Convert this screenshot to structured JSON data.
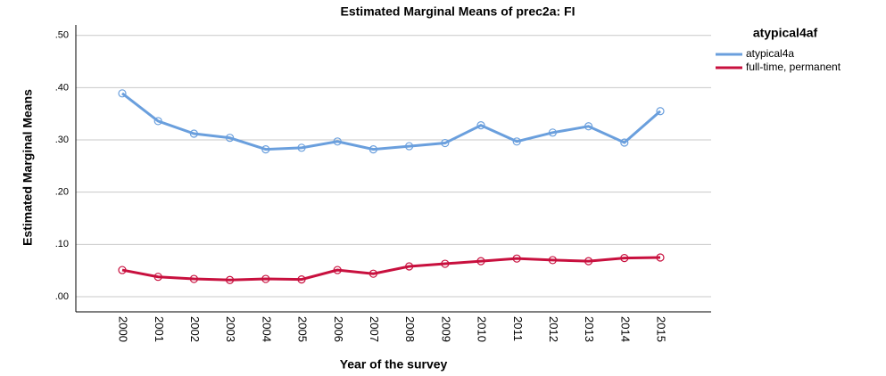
{
  "chart_data": {
    "type": "line",
    "title": "Estimated Marginal Means of prec2a: FI",
    "x_label": "Year of the survey",
    "y_label": "Estimated Marginal Means",
    "legend_title": "atypical4af",
    "legend_position": "right",
    "grid": true,
    "markers": "open-circle",
    "categories": [
      "2000",
      "2001",
      "2002",
      "2003",
      "2004",
      "2005",
      "2006",
      "2007",
      "2008",
      "2009",
      "2010",
      "2011",
      "2012",
      "2013",
      "2014",
      "2015"
    ],
    "series": [
      {
        "name": "atypical4a",
        "color": "#6a9fdd",
        "values": [
          0.389,
          0.336,
          0.312,
          0.304,
          0.282,
          0.285,
          0.297,
          0.282,
          0.288,
          0.294,
          0.328,
          0.297,
          0.314,
          0.326,
          0.295,
          0.355
        ]
      },
      {
        "name": "full-time, permanent",
        "color": "#c8103e",
        "values": [
          0.051,
          0.038,
          0.034,
          0.032,
          0.034,
          0.033,
          0.051,
          0.044,
          0.058,
          0.063,
          0.068,
          0.073,
          0.07,
          0.068,
          0.074,
          0.075
        ]
      }
    ],
    "ylim": [
      -0.029,
      0.52
    ],
    "yticks": [
      {
        "value": 0,
        "label": ".00"
      },
      {
        "value": 0.1,
        "label": ".10"
      },
      {
        "value": 0.2,
        "label": ".20"
      },
      {
        "value": 0.3,
        "label": ".30"
      },
      {
        "value": 0.4,
        "label": ".40"
      },
      {
        "value": 0.5,
        "label": ".50"
      }
    ]
  }
}
